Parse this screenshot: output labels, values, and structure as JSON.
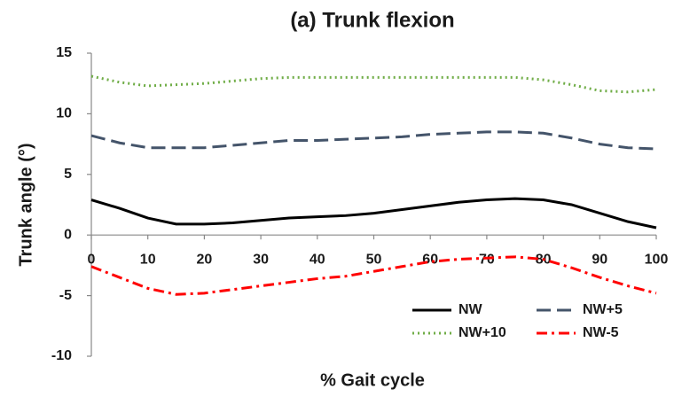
{
  "chart_data": {
    "type": "line",
    "title": "(a) Trunk flexion",
    "x_label": "% Gait cycle",
    "y_label": "Trunk angle (°)",
    "x": [
      0,
      5,
      10,
      15,
      20,
      25,
      30,
      35,
      40,
      45,
      50,
      55,
      60,
      65,
      70,
      75,
      80,
      85,
      90,
      95,
      100
    ],
    "series": [
      {
        "name": "NW",
        "color": "#000000",
        "line_style": "solid",
        "values": [
          2.9,
          2.2,
          1.4,
          0.9,
          0.9,
          1.0,
          1.2,
          1.4,
          1.5,
          1.6,
          1.8,
          2.1,
          2.4,
          2.7,
          2.9,
          3.0,
          2.9,
          2.5,
          1.8,
          1.1,
          0.6
        ]
      },
      {
        "name": "NW+5",
        "color": "#44546a",
        "line_style": "dashed",
        "values": [
          8.2,
          7.6,
          7.2,
          7.2,
          7.2,
          7.4,
          7.6,
          7.8,
          7.8,
          7.9,
          8.0,
          8.1,
          8.3,
          8.4,
          8.5,
          8.5,
          8.4,
          8.0,
          7.5,
          7.2,
          7.1
        ]
      },
      {
        "name": "NW+10",
        "color": "#70ad47",
        "line_style": "dotted",
        "values": [
          13.1,
          12.6,
          12.3,
          12.4,
          12.5,
          12.7,
          12.9,
          13.0,
          13.0,
          13.0,
          13.0,
          13.0,
          13.0,
          13.0,
          13.0,
          13.0,
          12.8,
          12.4,
          11.9,
          11.8,
          12.0
        ]
      },
      {
        "name": "NW-5",
        "color": "#ff0000",
        "line_style": "dashdot",
        "values": [
          -2.6,
          -3.5,
          -4.4,
          -4.9,
          -4.8,
          -4.5,
          -4.2,
          -3.9,
          -3.6,
          -3.4,
          -3.0,
          -2.6,
          -2.2,
          -2.0,
          -1.9,
          -1.8,
          -2.0,
          -2.7,
          -3.5,
          -4.2,
          -4.8
        ]
      }
    ],
    "xlim": [
      0,
      100
    ],
    "xticks": [
      0,
      10,
      20,
      30,
      40,
      50,
      60,
      70,
      80,
      90,
      100
    ],
    "ylim": [
      -10,
      15
    ],
    "yticks": [
      -10,
      -5,
      0,
      5,
      10,
      15
    ],
    "grid": false,
    "legend": "lower right"
  }
}
